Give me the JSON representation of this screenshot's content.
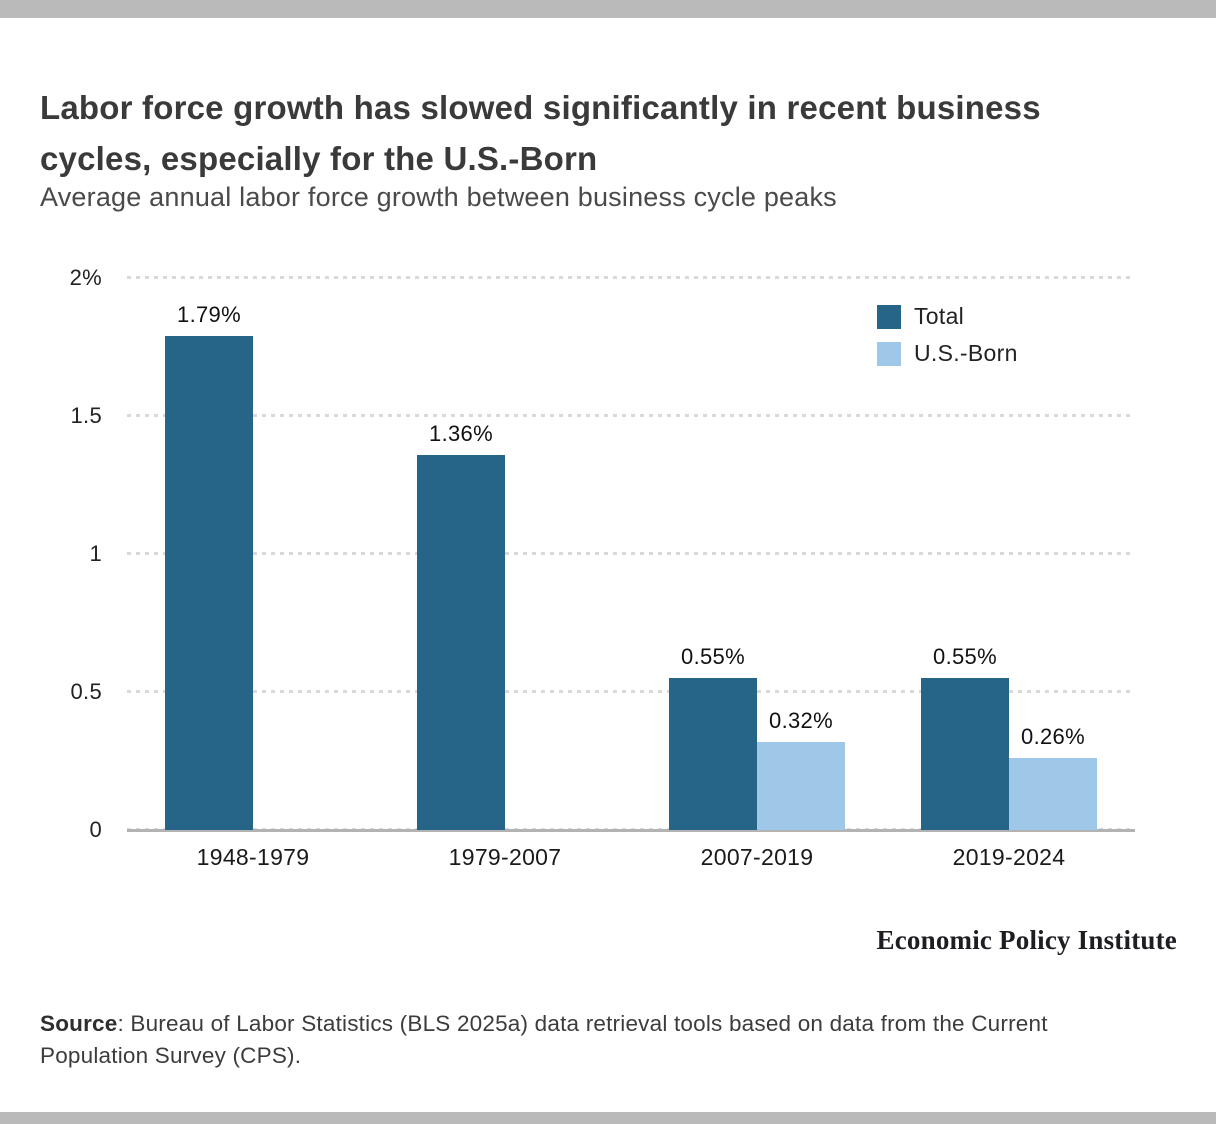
{
  "header": {
    "title": "Labor force growth has slowed significantly in recent business cycles, especially for the U.S.-Born",
    "subtitle": "Average annual labor force growth between business cycle peaks"
  },
  "chart_data": {
    "type": "bar",
    "title": "Labor force growth has slowed significantly in recent business cycles, especially for the U.S.-Born",
    "subtitle": "Average annual labor force growth between business cycle peaks",
    "categories": [
      "1948-1979",
      "1979-2007",
      "2007-2019",
      "2019-2024"
    ],
    "series": [
      {
        "name": "Total",
        "color": "#266488",
        "values": [
          1.79,
          1.36,
          0.55,
          0.55
        ],
        "labels": [
          "1.79%",
          "1.36%",
          "0.55%",
          "0.55%"
        ]
      },
      {
        "name": "U.S.-Born",
        "color": "#9fc8e8",
        "values": [
          null,
          null,
          0.32,
          0.26
        ],
        "labels": [
          null,
          null,
          "0.32%",
          "0.26%"
        ]
      }
    ],
    "ylim": [
      0,
      2
    ],
    "yticks": [
      {
        "value": 2,
        "label": "2%"
      },
      {
        "value": 1.5,
        "label": "1.5"
      },
      {
        "value": 1,
        "label": "1"
      },
      {
        "value": 0.5,
        "label": "0.5"
      },
      {
        "value": 0,
        "label": "0"
      }
    ],
    "xlabel": "",
    "ylabel": "",
    "grid": "dotted-horizontal",
    "legend_position": "top-right"
  },
  "footer": {
    "brand": "Economic Policy Institute",
    "source_label": "Source",
    "source_text": ": Bureau of Labor Statistics (BLS 2025a) data retrieval tools based on data from the Current Population Survey (CPS)."
  }
}
